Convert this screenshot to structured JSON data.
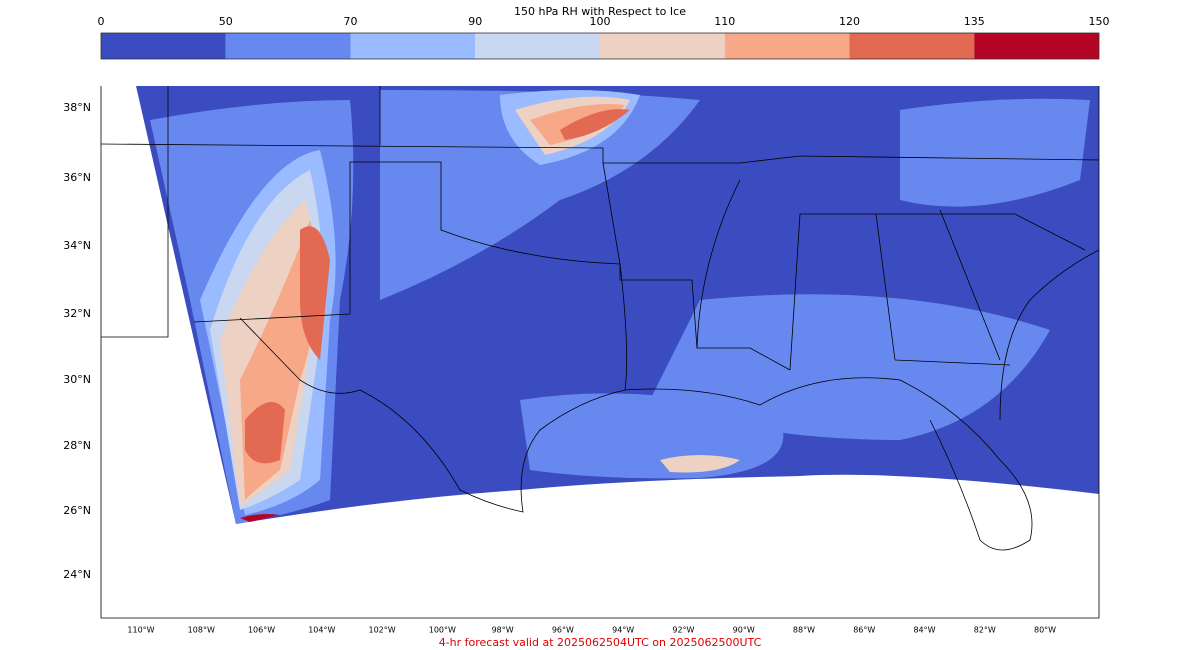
{
  "colorbar": {
    "title": "150 hPa RH with Respect to Ice",
    "ticks": [
      "0",
      "50",
      "70",
      "90",
      "100",
      "110",
      "120",
      "135",
      "150"
    ],
    "colors": [
      "#3b4cc0",
      "#6788ee",
      "#9abbff",
      "#c9d7f0",
      "#edd1c2",
      "#f7a889",
      "#e26952",
      "#b40426"
    ]
  },
  "lat_labels": [
    "38°N",
    "36°N",
    "34°N",
    "32°N",
    "30°N",
    "28°N",
    "26°N",
    "24°N"
  ],
  "lon_labels": [
    "110°W",
    "108°W",
    "106°W",
    "104°W",
    "102°W",
    "100°W",
    "98°W",
    "96°W",
    "94°W",
    "92°W",
    "90°W",
    "88°W",
    "86°W",
    "84°W",
    "82°W",
    "80°W"
  ],
  "caption": "4-hr forecast valid at 2025062504UTC on 2025062500UTC"
}
